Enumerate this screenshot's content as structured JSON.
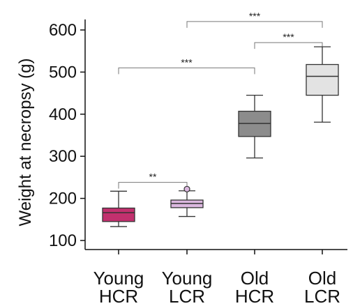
{
  "chart_data": {
    "type": "boxplot",
    "ylabel": "Weight at necropsy (g)",
    "ylim": [
      80,
      625
    ],
    "yticks": [
      100,
      200,
      300,
      400,
      500,
      600
    ],
    "grid": false,
    "categories": [
      {
        "line1": "Young",
        "line2": "HCR"
      },
      {
        "line1": "Young",
        "line2": "LCR"
      },
      {
        "line1": "Old",
        "line2": "HCR"
      },
      {
        "line1": "Old",
        "line2": "LCR"
      }
    ],
    "boxes": [
      {
        "min": 133,
        "q1": 145,
        "median": 166,
        "q3": 177,
        "max": 217,
        "outliers": [],
        "color": "#c2306e"
      },
      {
        "min": 157,
        "q1": 178,
        "median": 188,
        "q3": 196,
        "max": 218,
        "outliers": [
          222
        ],
        "color": "#dcb8e0"
      },
      {
        "min": 296,
        "q1": 347,
        "median": 378,
        "q3": 407,
        "max": 445,
        "outliers": [],
        "color": "#8c8c8c"
      },
      {
        "min": 381,
        "q1": 445,
        "median": 490,
        "q3": 518,
        "max": 560,
        "outliers": [],
        "color": "#e3e3e3"
      }
    ],
    "significance": [
      {
        "from": 0,
        "to": 1,
        "y": 238,
        "label": "**"
      },
      {
        "from": 0,
        "to": 2,
        "y": 510,
        "label": "***"
      },
      {
        "from": 2,
        "to": 3,
        "y": 570,
        "label": "***"
      },
      {
        "from": 1,
        "to": 3,
        "y": 620,
        "label": "***"
      }
    ]
  }
}
